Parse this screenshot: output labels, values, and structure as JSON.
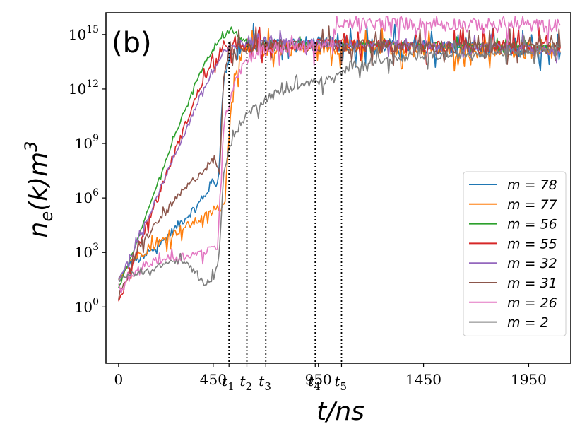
{
  "chart_data": {
    "type": "line",
    "panel_label": "(b)",
    "xlabel": "t/ns",
    "ylabel": "n_e(k)m^3",
    "xlim": [
      -60,
      2150
    ],
    "ylog": true,
    "ylim_exp": [
      -3.1,
      16.2
    ],
    "grid": false,
    "legend_position": "right",
    "x_ticks": [
      {
        "value": 0,
        "label": "0"
      },
      {
        "value": 450,
        "label": "450"
      },
      {
        "value": 950,
        "label": "950"
      },
      {
        "value": 1450,
        "label": "1450"
      },
      {
        "value": 1950,
        "label": "1950"
      }
    ],
    "t_markers": [
      {
        "value": 525,
        "sub": "1"
      },
      {
        "value": 610,
        "sub": "2"
      },
      {
        "value": 700,
        "sub": "3"
      },
      {
        "value": 935,
        "sub": "4"
      },
      {
        "value": 1060,
        "sub": "5"
      }
    ],
    "y_ticks": [
      {
        "exp": 0,
        "label": "0"
      },
      {
        "exp": 3,
        "label": "3"
      },
      {
        "exp": 6,
        "label": "6"
      },
      {
        "exp": 9,
        "label": "9"
      },
      {
        "exp": 12,
        "label": "12"
      },
      {
        "exp": 15,
        "label": "15"
      }
    ],
    "series": [
      {
        "name": "m = 78",
        "color": "#1f77b4",
        "noise": 0.8,
        "x": [
          0,
          60,
          120,
          200,
          300,
          400,
          440,
          450,
          470,
          500,
          530,
          560,
          600,
          700,
          1000,
          1500,
          2000,
          2100
        ],
        "log10_y": [
          1.5,
          2.5,
          2.7,
          3.5,
          4.7,
          5.9,
          6.8,
          7.0,
          6.8,
          12.5,
          14.0,
          14.2,
          14.3,
          14.5,
          14.5,
          14.3,
          14.1,
          14.0
        ]
      },
      {
        "name": "m = 77",
        "color": "#ff7f0e",
        "noise": 0.8,
        "x": [
          0,
          50,
          100,
          200,
          300,
          400,
          500,
          550,
          600,
          700,
          1000,
          1500,
          2000,
          2100
        ],
        "log10_y": [
          1.5,
          2.5,
          2.9,
          3.6,
          4.3,
          4.9,
          5.6,
          13.0,
          14.0,
          14.2,
          14.3,
          14.2,
          14.0,
          14.0
        ]
      },
      {
        "name": "m = 56",
        "color": "#2ca02c",
        "noise": 0.3,
        "x": [
          0,
          100,
          200,
          300,
          400,
          500,
          530,
          560,
          600,
          650,
          700,
          1000,
          1500,
          2100
        ],
        "log10_y": [
          1.0,
          4.0,
          7.3,
          10.4,
          13.3,
          15.0,
          15.2,
          15.0,
          14.6,
          14.5,
          14.4,
          14.5,
          14.4,
          14.4
        ]
      },
      {
        "name": "m = 55",
        "color": "#d62728",
        "noise": 0.7,
        "x": [
          0,
          100,
          200,
          300,
          400,
          500,
          530,
          560,
          600,
          700,
          1000,
          1500,
          2100
        ],
        "log10_y": [
          0.2,
          3.5,
          6.5,
          9.5,
          12.5,
          14.2,
          14.4,
          14.3,
          14.3,
          14.4,
          14.4,
          14.3,
          14.3
        ]
      },
      {
        "name": "m = 32",
        "color": "#9467bd",
        "noise": 0.5,
        "x": [
          0,
          100,
          200,
          300,
          400,
          500,
          550,
          600,
          650,
          700,
          750,
          1000,
          1500,
          2000,
          2100
        ],
        "log10_y": [
          1.5,
          3.8,
          6.6,
          9.2,
          11.9,
          14.0,
          14.4,
          14.5,
          14.8,
          14.9,
          14.6,
          14.5,
          14.4,
          14.2,
          14.0
        ]
      },
      {
        "name": "m = 31",
        "color": "#8c564b",
        "noise": 0.7,
        "x": [
          0,
          100,
          200,
          300,
          400,
          450,
          460,
          480,
          500,
          530,
          560,
          600,
          700,
          1000,
          1500,
          2100
        ],
        "log10_y": [
          0.5,
          3.3,
          4.9,
          6.3,
          7.5,
          8.1,
          8.2,
          7.2,
          12.8,
          14.3,
          14.3,
          14.3,
          14.4,
          14.4,
          14.3,
          14.3
        ]
      },
      {
        "name": "m = 26",
        "color": "#e377c2",
        "noise": 0.7,
        "x": [
          0,
          50,
          100,
          200,
          300,
          400,
          450,
          470,
          500,
          550,
          600,
          650,
          700,
          800,
          900,
          1000,
          1050,
          1100,
          1200,
          1500,
          2000,
          2100
        ],
        "log10_y": [
          0.8,
          1.5,
          2.2,
          2.6,
          2.8,
          3.0,
          3.2,
          3.3,
          10.0,
          12.5,
          13.5,
          14.0,
          14.2,
          14.3,
          14.3,
          14.5,
          15.4,
          15.6,
          15.6,
          15.6,
          15.5,
          15.5
        ]
      },
      {
        "name": "m = 2",
        "color": "#7f7f7f",
        "noise": 0.5,
        "x": [
          0,
          50,
          100,
          150,
          200,
          250,
          300,
          350,
          380,
          400,
          430,
          470,
          480,
          500,
          550,
          600,
          700,
          800,
          900,
          1000,
          1060,
          1100,
          1200,
          1500,
          2000,
          2100
        ],
        "log10_y": [
          1.5,
          1.8,
          1.8,
          2.0,
          2.3,
          2.5,
          2.5,
          2.2,
          1.8,
          1.3,
          1.4,
          2.2,
          3.2,
          7.5,
          9.5,
          10.5,
          11.5,
          12.0,
          12.3,
          12.5,
          12.8,
          13.3,
          13.5,
          13.8,
          14.2,
          14.3
        ]
      }
    ]
  }
}
